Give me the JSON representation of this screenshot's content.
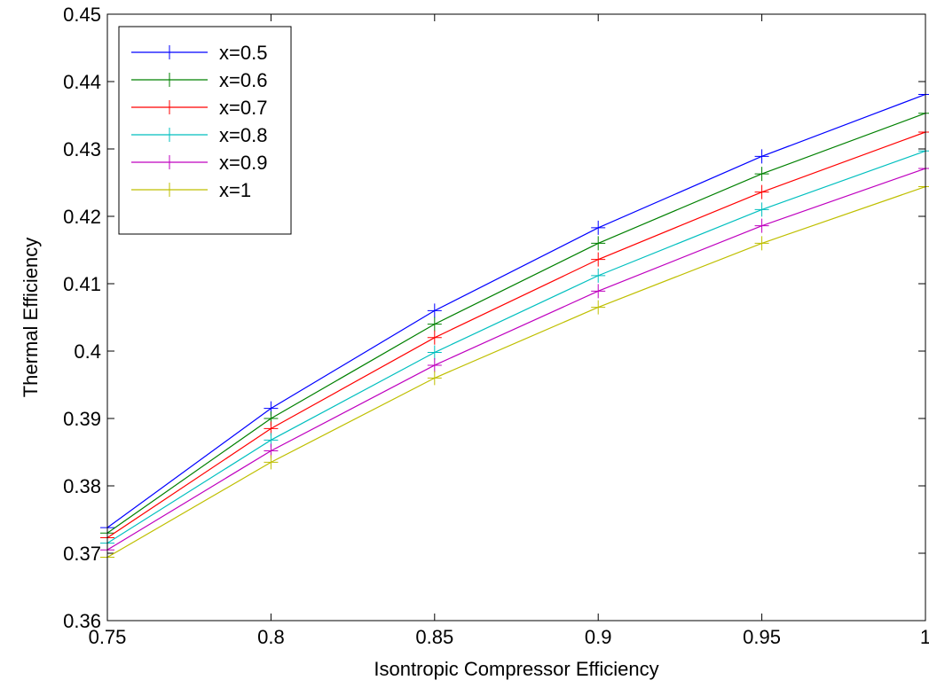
{
  "chart_data": {
    "type": "line",
    "xlabel": "Isontropic Compressor Efficiency",
    "ylabel": "Thermal Efficiency",
    "xlim": [
      0.75,
      1
    ],
    "ylim": [
      0.36,
      0.45
    ],
    "x": [
      0.75,
      0.8,
      0.85,
      0.9,
      0.95,
      1
    ],
    "x_tick_labels": [
      "0.75",
      "0.8",
      "0.85",
      "0.9",
      "0.95",
      "1"
    ],
    "y_ticks": [
      0.36,
      0.37,
      0.38,
      0.39,
      0.4,
      0.41,
      0.42,
      0.43,
      0.44,
      0.45
    ],
    "y_tick_labels": [
      "0.36",
      "0.37",
      "0.38",
      "0.39",
      "0.4",
      "0.41",
      "0.42",
      "0.43",
      "0.44",
      "0.45"
    ],
    "grid": false,
    "legend_position": "top-left",
    "marker": "plus",
    "series": [
      {
        "name": "x=0.5",
        "color": "#0000ff",
        "values": [
          0.3738,
          0.3915,
          0.406,
          0.4183,
          0.4289,
          0.4381
        ]
      },
      {
        "name": "x=0.6",
        "color": "#008000",
        "values": [
          0.373,
          0.39,
          0.404,
          0.416,
          0.4263,
          0.4353
        ]
      },
      {
        "name": "x=0.7",
        "color": "#ff0000",
        "values": [
          0.3723,
          0.3885,
          0.402,
          0.4136,
          0.4236,
          0.4325
        ]
      },
      {
        "name": "x=0.8",
        "color": "#00bfbf",
        "values": [
          0.3715,
          0.3868,
          0.3998,
          0.4112,
          0.421,
          0.4297
        ]
      },
      {
        "name": "x=0.9",
        "color": "#bf00bf",
        "values": [
          0.3705,
          0.3852,
          0.3979,
          0.4089,
          0.4186,
          0.4271
        ]
      },
      {
        "name": "x=1",
        "color": "#bfbf00",
        "values": [
          0.3694,
          0.3835,
          0.396,
          0.4065,
          0.416,
          0.4244
        ]
      }
    ]
  }
}
